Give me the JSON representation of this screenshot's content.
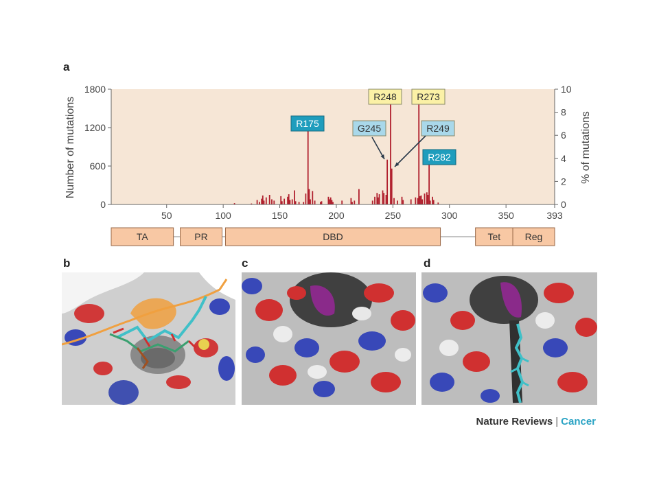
{
  "figure": {
    "panels": {
      "a": "a",
      "b": "b",
      "c": "c",
      "d": "d"
    },
    "footer": {
      "journal": "Nature Reviews",
      "separator": "|",
      "section": "Cancer"
    }
  },
  "chart_data": {
    "type": "bar",
    "ylabel_left": "Number of mutations",
    "ylabel_right": "% of mutations",
    "xlim": [
      1,
      393
    ],
    "ylim_left": [
      0,
      1800
    ],
    "ylim_right": [
      0,
      10
    ],
    "x_ticks": [
      "50",
      "100",
      "150",
      "200",
      "250",
      "300",
      "350",
      "393"
    ],
    "y_ticks_left": [
      "0",
      "600",
      "1200",
      "1800"
    ],
    "y_ticks_right": [
      "0",
      "2",
      "4",
      "6",
      "8",
      "10"
    ],
    "bar_color": "#b0202e",
    "background_color": "#f6e6d6",
    "bars": [
      {
        "x": 110,
        "y": 20
      },
      {
        "x": 125,
        "y": 15
      },
      {
        "x": 130,
        "y": 70
      },
      {
        "x": 132,
        "y": 40
      },
      {
        "x": 134,
        "y": 90
      },
      {
        "x": 135,
        "y": 140
      },
      {
        "x": 136,
        "y": 60
      },
      {
        "x": 138,
        "y": 110
      },
      {
        "x": 141,
        "y": 150
      },
      {
        "x": 143,
        "y": 80
      },
      {
        "x": 145,
        "y": 60
      },
      {
        "x": 151,
        "y": 130
      },
      {
        "x": 152,
        "y": 50
      },
      {
        "x": 154,
        "y": 90
      },
      {
        "x": 157,
        "y": 120
      },
      {
        "x": 158,
        "y": 160
      },
      {
        "x": 159,
        "y": 70
      },
      {
        "x": 161,
        "y": 80
      },
      {
        "x": 163,
        "y": 220
      },
      {
        "x": 164,
        "y": 50
      },
      {
        "x": 167,
        "y": 40
      },
      {
        "x": 171,
        "y": 40
      },
      {
        "x": 173,
        "y": 170
      },
      {
        "x": 175,
        "y": 1180
      },
      {
        "x": 176,
        "y": 240
      },
      {
        "x": 177,
        "y": 80
      },
      {
        "x": 179,
        "y": 210
      },
      {
        "x": 181,
        "y": 60
      },
      {
        "x": 186,
        "y": 40
      },
      {
        "x": 187,
        "y": 50
      },
      {
        "x": 193,
        "y": 120
      },
      {
        "x": 194,
        "y": 80
      },
      {
        "x": 195,
        "y": 110
      },
      {
        "x": 196,
        "y": 70
      },
      {
        "x": 197,
        "y": 40
      },
      {
        "x": 205,
        "y": 60
      },
      {
        "x": 213,
        "y": 100
      },
      {
        "x": 214,
        "y": 40
      },
      {
        "x": 216,
        "y": 60
      },
      {
        "x": 220,
        "y": 240
      },
      {
        "x": 232,
        "y": 60
      },
      {
        "x": 234,
        "y": 120
      },
      {
        "x": 236,
        "y": 180
      },
      {
        "x": 237,
        "y": 110
      },
      {
        "x": 238,
        "y": 160
      },
      {
        "x": 241,
        "y": 220
      },
      {
        "x": 242,
        "y": 180
      },
      {
        "x": 244,
        "y": 150
      },
      {
        "x": 245,
        "y": 700
      },
      {
        "x": 248,
        "y": 1600
      },
      {
        "x": 249,
        "y": 560
      },
      {
        "x": 251,
        "y": 100
      },
      {
        "x": 254,
        "y": 60
      },
      {
        "x": 258,
        "y": 120
      },
      {
        "x": 259,
        "y": 70
      },
      {
        "x": 266,
        "y": 80
      },
      {
        "x": 270,
        "y": 110
      },
      {
        "x": 272,
        "y": 100
      },
      {
        "x": 273,
        "y": 1600
      },
      {
        "x": 274,
        "y": 130
      },
      {
        "x": 275,
        "y": 140
      },
      {
        "x": 276,
        "y": 80
      },
      {
        "x": 278,
        "y": 170
      },
      {
        "x": 280,
        "y": 190
      },
      {
        "x": 281,
        "y": 150
      },
      {
        "x": 282,
        "y": 620
      },
      {
        "x": 283,
        "y": 60
      },
      {
        "x": 285,
        "y": 120
      },
      {
        "x": 286,
        "y": 70
      },
      {
        "x": 290,
        "y": 30
      }
    ],
    "annotations": [
      {
        "label": "R175",
        "x": 175,
        "style": "teal"
      },
      {
        "label": "R248",
        "x": 248,
        "style": "yellow"
      },
      {
        "label": "R273",
        "x": 273,
        "style": "yellow"
      },
      {
        "label": "G245",
        "x": 245,
        "style": "lightblue"
      },
      {
        "label": "R249",
        "x": 249,
        "style": "lightblue"
      },
      {
        "label": "R282",
        "x": 282,
        "style": "teal"
      }
    ],
    "domains": [
      {
        "label": "TA",
        "start": 1,
        "end": 56
      },
      {
        "label": "PR",
        "start": 62,
        "end": 99
      },
      {
        "label": "DBD",
        "start": 102,
        "end": 292
      },
      {
        "label": "Tet",
        "start": 323,
        "end": 356
      },
      {
        "label": "Reg",
        "start": 356,
        "end": 393
      }
    ],
    "annotation_colors": {
      "teal": "#1f9dbd",
      "yellow": "#fbf1a6",
      "lightblue": "#a9d8ea"
    }
  },
  "structures": [
    {
      "panel": "b",
      "description_colors": [
        "#c8c8c8",
        "#d03030",
        "#3848b8",
        "#f0a040",
        "#40c0c8"
      ]
    },
    {
      "panel": "c",
      "description_colors": [
        "#c8c8c8",
        "#d03030",
        "#3848b8",
        "#8a2a8a"
      ]
    },
    {
      "panel": "d",
      "description_colors": [
        "#c8c8c8",
        "#d03030",
        "#3848b8",
        "#8a2a8a",
        "#40c0c8"
      ]
    }
  ]
}
